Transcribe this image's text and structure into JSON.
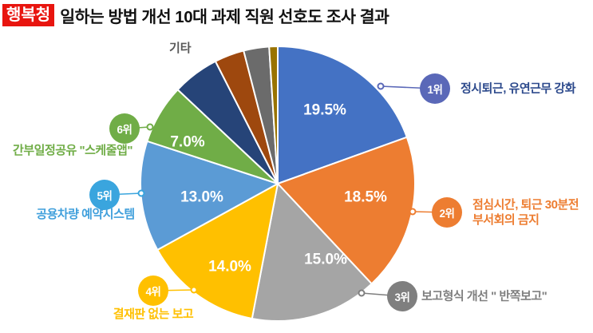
{
  "header": {
    "badge": "행복청",
    "badge_color": "#E8150F",
    "title": "일하는 방법 개선 10대 과제 직원 선호도 조사 결과"
  },
  "others_label": "기타",
  "chart_data": {
    "type": "pie",
    "title": "일하는 방법 개선 10대 과제 직원 선호도 조사 결과",
    "start_angle_deg": 0,
    "direction": "clockwise",
    "value_suffix": "%",
    "slices": [
      {
        "rank": "1위",
        "label": "정시퇴근, 유연근무 강화",
        "value": 19.5,
        "color": "#4472C4",
        "show_pct": true
      },
      {
        "rank": "2위",
        "label": "점심시간, 퇴근 30분전 부서회의 금지",
        "value": 18.5,
        "color": "#ED7D31",
        "show_pct": true
      },
      {
        "rank": "3위",
        "label": "보고형식 개선 \" 반쪽보고\"",
        "value": 15.0,
        "color": "#A5A5A5",
        "show_pct": true
      },
      {
        "rank": "4위",
        "label": "결재판 없는 보고",
        "value": 14.0,
        "color": "#FFC000",
        "show_pct": true
      },
      {
        "rank": "5위",
        "label": "공용차량 예약시스템",
        "value": 13.0,
        "color": "#5B9BD5",
        "show_pct": true
      },
      {
        "rank": "6위",
        "label": "간부일정공유 \"스케줄앱\"",
        "value": 7.0,
        "color": "#70AD47",
        "show_pct": true
      },
      {
        "rank": null,
        "label": "기타",
        "value": 5.5,
        "color": "#264478",
        "show_pct": false,
        "estimated": true
      },
      {
        "rank": null,
        "label": "기타",
        "value": 3.5,
        "color": "#9E480E",
        "show_pct": false,
        "estimated": true
      },
      {
        "rank": null,
        "label": "기타",
        "value": 3.0,
        "color": "#6B6B6B",
        "show_pct": false,
        "estimated": true
      },
      {
        "rank": null,
        "label": "기타",
        "value": 1.0,
        "color": "#997300",
        "show_pct": false,
        "estimated": true
      }
    ]
  },
  "callouts": [
    {
      "rank": "1위",
      "badge_color": "#5A68B8",
      "text_color": "#2E4B8D",
      "lines": [
        "정시퇴근, 유연근무 강화"
      ]
    },
    {
      "rank": "2위",
      "badge_color": "#ED7D31",
      "text_color": "#ED7D31",
      "lines": [
        "점심시간, 퇴근 30분전",
        "부서회의 금지"
      ]
    },
    {
      "rank": "3위",
      "badge_color": "#7F7F7F",
      "text_color": "#7F7F7F",
      "lines": [
        "보고형식 개선 \" 반쪽보고\""
      ]
    },
    {
      "rank": "4위",
      "badge_color": "#FFC000",
      "text_color": "#FFC000",
      "lines": [
        "결재판 없는 보고"
      ]
    },
    {
      "rank": "5위",
      "badge_color": "#3AA5DE",
      "text_color": "#41A0DC",
      "lines": [
        "공용차량 예약시스템"
      ]
    },
    {
      "rank": "6위",
      "badge_color": "#70AD47",
      "text_color": "#70AD47",
      "lines": [
        "간부일정공유 \"스케줄앱\""
      ]
    }
  ]
}
